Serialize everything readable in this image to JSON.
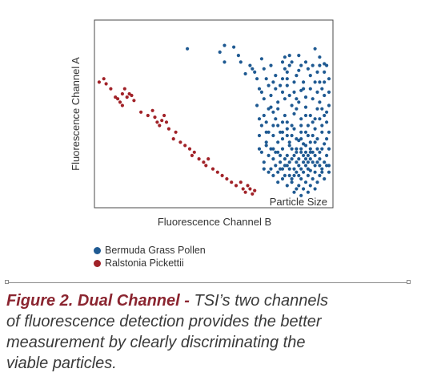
{
  "chart_data": {
    "type": "scatter",
    "xlabel": "Fluorescence Channel B",
    "ylabel": "Fluorescence Channel A",
    "corner_label": "Particle Size",
    "grid": false,
    "legend_position": "bottom-left",
    "xlim": [
      0,
      100
    ],
    "ylim": [
      0,
      100
    ],
    "series": [
      {
        "name": "Bermuda Grass Pollen",
        "color": "#1f5a92",
        "points": [
          [
            39,
            90
          ],
          [
            55,
            92
          ],
          [
            59,
            91
          ],
          [
            61,
            86
          ],
          [
            62,
            82
          ],
          [
            66,
            80
          ],
          [
            67,
            78
          ],
          [
            64,
            75
          ],
          [
            53,
            88
          ],
          [
            55,
            82
          ],
          [
            68,
            76
          ],
          [
            81,
            85
          ],
          [
            83,
            80
          ],
          [
            82,
            76
          ],
          [
            86,
            74
          ],
          [
            94,
            90
          ],
          [
            96,
            85
          ],
          [
            98,
            81
          ],
          [
            100,
            72
          ],
          [
            96,
            70
          ],
          [
            87,
            77
          ],
          [
            80,
            72
          ],
          [
            82,
            68
          ],
          [
            85,
            64
          ],
          [
            88,
            65
          ],
          [
            90,
            61
          ],
          [
            93,
            60
          ],
          [
            96,
            58
          ],
          [
            100,
            56
          ],
          [
            97,
            54
          ],
          [
            72,
            60
          ],
          [
            75,
            55
          ],
          [
            69,
            56
          ],
          [
            72,
            50
          ],
          [
            76,
            52
          ],
          [
            71,
            44
          ],
          [
            74,
            40
          ],
          [
            78,
            44
          ],
          [
            82,
            42
          ],
          [
            80,
            36
          ],
          [
            84,
            38
          ],
          [
            87,
            35
          ],
          [
            90,
            40
          ],
          [
            92,
            34
          ],
          [
            95,
            30
          ],
          [
            98,
            33
          ],
          [
            100,
            40
          ],
          [
            99,
            46
          ],
          [
            94,
            48
          ],
          [
            88,
            48
          ],
          [
            85,
            51
          ],
          [
            81,
            50
          ],
          [
            77,
            48
          ],
          [
            73,
            34
          ],
          [
            76,
            30
          ],
          [
            80,
            30
          ],
          [
            83,
            32
          ],
          [
            86,
            28
          ],
          [
            88,
            30
          ],
          [
            91,
            26
          ],
          [
            93,
            28
          ],
          [
            96,
            24
          ],
          [
            99,
            26
          ],
          [
            76,
            24
          ],
          [
            79,
            22
          ],
          [
            82,
            20
          ],
          [
            84,
            24
          ],
          [
            86,
            22
          ],
          [
            88,
            18
          ],
          [
            90,
            20
          ],
          [
            92,
            17
          ],
          [
            94,
            20
          ],
          [
            97,
            18
          ],
          [
            71,
            28
          ],
          [
            74,
            26
          ],
          [
            78,
            34
          ],
          [
            84,
            30
          ],
          [
            89,
            33
          ],
          [
            92,
            30
          ],
          [
            95,
            36
          ],
          [
            97,
            40
          ],
          [
            80,
            18
          ],
          [
            83,
            14
          ],
          [
            86,
            16
          ],
          [
            88,
            12
          ],
          [
            91,
            14
          ],
          [
            93,
            12
          ],
          [
            96,
            14
          ],
          [
            84,
            10
          ],
          [
            87,
            8
          ],
          [
            90,
            10
          ],
          [
            82,
            26
          ],
          [
            85,
            26
          ],
          [
            87,
            24
          ],
          [
            89,
            26
          ],
          [
            90,
            24
          ],
          [
            91,
            22
          ],
          [
            92,
            24
          ],
          [
            93,
            22
          ],
          [
            94,
            26
          ],
          [
            95,
            22
          ],
          [
            96,
            20
          ],
          [
            89,
            22
          ],
          [
            87,
            20
          ],
          [
            85,
            18
          ],
          [
            83,
            22
          ],
          [
            81,
            24
          ],
          [
            79,
            26
          ],
          [
            77,
            28
          ],
          [
            98,
            22
          ],
          [
            86,
            30
          ],
          [
            88,
            28
          ],
          [
            90,
            28
          ],
          [
            92,
            28
          ],
          [
            94,
            16
          ],
          [
            91,
            18
          ],
          [
            89,
            16
          ],
          [
            87,
            14
          ],
          [
            85,
            14
          ],
          [
            83,
            18
          ],
          [
            81,
            20
          ],
          [
            79,
            18
          ],
          [
            77,
            20
          ],
          [
            75,
            30
          ],
          [
            73,
            40
          ],
          [
            76,
            38
          ],
          [
            79,
            40
          ],
          [
            82,
            38
          ],
          [
            85,
            42
          ],
          [
            88,
            44
          ],
          [
            91,
            44
          ],
          [
            94,
            42
          ],
          [
            97,
            44
          ],
          [
            99,
            36
          ],
          [
            98,
            50
          ],
          [
            95,
            54
          ],
          [
            92,
            50
          ],
          [
            90,
            55
          ],
          [
            87,
            58
          ],
          [
            84,
            56
          ],
          [
            81,
            60
          ],
          [
            78,
            58
          ],
          [
            75,
            62
          ],
          [
            71,
            64
          ],
          [
            74,
            68
          ],
          [
            77,
            66
          ],
          [
            80,
            64
          ],
          [
            83,
            62
          ],
          [
            86,
            60
          ],
          [
            89,
            66
          ],
          [
            92,
            66
          ],
          [
            95,
            64
          ],
          [
            98,
            62
          ],
          [
            73,
            72
          ],
          [
            76,
            70
          ],
          [
            79,
            68
          ],
          [
            82,
            72
          ],
          [
            85,
            70
          ],
          [
            89,
            70
          ],
          [
            92,
            74
          ],
          [
            95,
            76
          ],
          [
            98,
            76
          ],
          [
            70,
            66
          ],
          [
            72,
            22
          ],
          [
            75,
            18
          ],
          [
            78,
            16
          ],
          [
            81,
            14
          ],
          [
            84,
            12
          ],
          [
            86,
            6
          ],
          [
            89,
            6
          ],
          [
            92,
            8
          ],
          [
            95,
            10
          ],
          [
            98,
            12
          ],
          [
            100,
            16
          ],
          [
            100,
            20
          ],
          [
            100,
            30
          ],
          [
            97,
            30
          ],
          [
            94,
            34
          ],
          [
            91,
            38
          ],
          [
            88,
            40
          ],
          [
            84,
            44
          ],
          [
            80,
            46
          ],
          [
            76,
            44
          ],
          [
            73,
            46
          ],
          [
            70,
            38
          ],
          [
            70,
            30
          ],
          [
            73,
            32
          ],
          [
            86,
            36
          ],
          [
            83,
            34
          ],
          [
            78,
            28
          ],
          [
            80,
            40
          ],
          [
            82,
            46
          ],
          [
            88,
            36
          ],
          [
            90,
            32
          ],
          [
            93,
            38
          ],
          [
            96,
            28
          ],
          [
            99,
            20
          ],
          [
            97,
            16
          ],
          [
            94,
            6
          ],
          [
            91,
            4
          ],
          [
            88,
            2
          ],
          [
            85,
            4
          ],
          [
            82,
            8
          ],
          [
            80,
            12
          ],
          [
            78,
            10
          ],
          [
            76,
            14
          ],
          [
            74,
            16
          ],
          [
            72,
            18
          ],
          [
            70,
            48
          ],
          [
            74,
            54
          ],
          [
            78,
            54
          ],
          [
            86,
            54
          ],
          [
            90,
            50
          ],
          [
            93,
            46
          ],
          [
            96,
            48
          ],
          [
            99,
            52
          ],
          [
            97,
            66
          ],
          [
            94,
            70
          ],
          [
            91,
            78
          ],
          [
            88,
            80
          ],
          [
            84,
            82
          ],
          [
            81,
            78
          ],
          [
            100,
            64
          ],
          [
            98,
            70
          ],
          [
            69,
            72
          ],
          [
            72,
            78
          ],
          [
            75,
            80
          ],
          [
            71,
            84
          ],
          [
            77,
            74
          ],
          [
            80,
            82
          ],
          [
            83,
            86
          ],
          [
            87,
            86
          ],
          [
            90,
            82
          ],
          [
            93,
            80
          ],
          [
            96,
            80
          ],
          [
            99,
            80
          ]
        ]
      },
      {
        "name": "Ralstonia Pickettii",
        "color": "#a12228",
        "points": [
          [
            1,
            70
          ],
          [
            3,
            72
          ],
          [
            4,
            69
          ],
          [
            6,
            66
          ],
          [
            8,
            61
          ],
          [
            9,
            60
          ],
          [
            10,
            58
          ],
          [
            11,
            63
          ],
          [
            11,
            56
          ],
          [
            12,
            66
          ],
          [
            13,
            61
          ],
          [
            14,
            63
          ],
          [
            15,
            62
          ],
          [
            16,
            59
          ],
          [
            19,
            52
          ],
          [
            22,
            50
          ],
          [
            24,
            53
          ],
          [
            25,
            49
          ],
          [
            26,
            46
          ],
          [
            27,
            44
          ],
          [
            28,
            47
          ],
          [
            29,
            50
          ],
          [
            30,
            46
          ],
          [
            31,
            42
          ],
          [
            33,
            36
          ],
          [
            34,
            40
          ],
          [
            36,
            34
          ],
          [
            38,
            32
          ],
          [
            40,
            30
          ],
          [
            41,
            26
          ],
          [
            42,
            28
          ],
          [
            44,
            24
          ],
          [
            46,
            22
          ],
          [
            47,
            20
          ],
          [
            48,
            24
          ],
          [
            50,
            18
          ],
          [
            52,
            16
          ],
          [
            54,
            14
          ],
          [
            56,
            12
          ],
          [
            58,
            10
          ],
          [
            60,
            8
          ],
          [
            62,
            10
          ],
          [
            63,
            6
          ],
          [
            64,
            4
          ],
          [
            65,
            8
          ],
          [
            66,
            6
          ],
          [
            67,
            3
          ],
          [
            68,
            5
          ]
        ]
      }
    ]
  },
  "legend": {
    "items": [
      {
        "label": "Bermuda Grass Pollen",
        "color": "#1f5a92"
      },
      {
        "label": "Ralstonia Pickettii",
        "color": "#a12228"
      }
    ]
  },
  "caption": {
    "lead": "Figure 2. Dual Channel -",
    "text": " TSI’s two channels of fluorescence detection provides the better measurement by clearly discriminating the viable particles."
  }
}
